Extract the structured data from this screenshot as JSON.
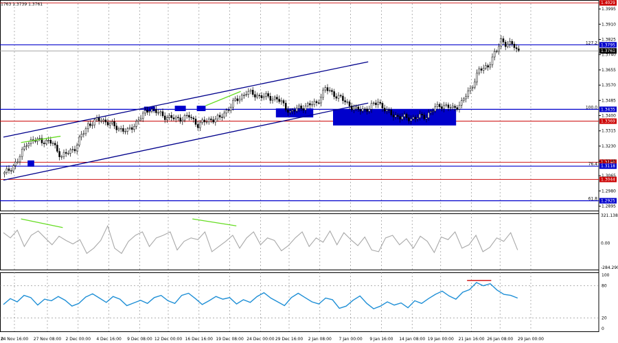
{
  "symbol_header": "1763 1.3739 1.3761",
  "colors": {
    "blue_level": "#0000cc",
    "red_level": "#cc0000",
    "candle": "#000000",
    "trend": "#00008b",
    "divergence": "#66dd22",
    "cci": "#a8a8a8",
    "rsi": "#1e8fd6",
    "grid": "#808080"
  },
  "chart_data": [
    {
      "type": "candlestick",
      "title": "",
      "yaxis_ticks": [
        "1.3995",
        "1.3910",
        "1.3825",
        "1.3740",
        "1.3655",
        "1.3570",
        "1.3485",
        "1.3400",
        "1.3315",
        "1.3230",
        "1.3145",
        "1.3065",
        "1.2980",
        "1.2895"
      ],
      "ylim": [
        1.287,
        1.4045
      ],
      "xlim_bars": [
        0,
        232
      ],
      "x_ticks": [
        {
          "label": "0",
          "bar": -1
        },
        {
          "label": "24 Nov 16:00",
          "bar": 5
        },
        {
          "label": "27 Nov 08:00",
          "bar": 20
        },
        {
          "label": "2 Dec 00:00",
          "bar": 34
        },
        {
          "label": "4 Dec 16:00",
          "bar": 48
        },
        {
          "label": "9 Dec 08:00",
          "bar": 62
        },
        {
          "label": "12 Dec 00:00",
          "bar": 75
        },
        {
          "label": "16 Dec 16:00",
          "bar": 89
        },
        {
          "label": "19 Dec 08:00",
          "bar": 103
        },
        {
          "label": "24 Dec 00:00",
          "bar": 117
        },
        {
          "label": "29 Dec 16:00",
          "bar": 130
        },
        {
          "label": "2 Jan 08:00",
          "bar": 144
        },
        {
          "label": "7 Jan 00:00",
          "bar": 158
        },
        {
          "label": "9 Jan 16:00",
          "bar": 172
        },
        {
          "label": "14 Jan 08:00",
          "bar": 186
        },
        {
          "label": "19 Jan 00:00",
          "bar": 199
        },
        {
          "label": "21 Jan 16:00",
          "bar": 213
        },
        {
          "label": "26 Jan 08:00",
          "bar": 226
        },
        {
          "label": "29 Jan 00:00",
          "bar": 240
        }
      ],
      "close_anchors": [
        [
          0,
          1.3075
        ],
        [
          6,
          1.3145
        ],
        [
          10,
          1.325
        ],
        [
          16,
          1.3265
        ],
        [
          22,
          1.3245
        ],
        [
          26,
          1.317
        ],
        [
          32,
          1.322
        ],
        [
          38,
          1.335
        ],
        [
          44,
          1.338
        ],
        [
          50,
          1.334
        ],
        [
          56,
          1.331
        ],
        [
          62,
          1.339
        ],
        [
          66,
          1.344
        ],
        [
          72,
          1.34
        ],
        [
          78,
          1.338
        ],
        [
          84,
          1.3395
        ],
        [
          88,
          1.335
        ],
        [
          94,
          1.338
        ],
        [
          98,
          1.3385
        ],
        [
          104,
          1.347
        ],
        [
          110,
          1.353
        ],
        [
          116,
          1.351
        ],
        [
          124,
          1.3495
        ],
        [
          130,
          1.342
        ],
        [
          136,
          1.345
        ],
        [
          142,
          1.347
        ],
        [
          146,
          1.355
        ],
        [
          150,
          1.352
        ],
        [
          156,
          1.347
        ],
        [
          160,
          1.343
        ],
        [
          166,
          1.344
        ],
        [
          170,
          1.348
        ],
        [
          174,
          1.342
        ],
        [
          180,
          1.339
        ],
        [
          186,
          1.3385
        ],
        [
          192,
          1.34
        ],
        [
          198,
          1.346
        ],
        [
          204,
          1.344
        ],
        [
          208,
          1.347
        ],
        [
          212,
          1.355
        ],
        [
          216,
          1.365
        ],
        [
          220,
          1.368
        ],
        [
          224,
          1.376
        ],
        [
          226,
          1.3825
        ],
        [
          228,
          1.38
        ],
        [
          232,
          1.379
        ],
        [
          234,
          1.3761
        ]
      ],
      "levels": [
        {
          "label": "1.4029",
          "value": 1.4029,
          "color": "red"
        },
        {
          "label": "1.3795",
          "value": 1.3795,
          "color": "blue",
          "fib": "127.2"
        },
        {
          "label": "1.3761",
          "value": 1.3761,
          "color": "gray",
          "current": true
        },
        {
          "label": "1.3435",
          "value": 1.3435,
          "color": "blue",
          "fib": "100.0"
        },
        {
          "label": "1.3369",
          "value": 1.3369,
          "color": "red"
        },
        {
          "label": "1.3140",
          "value": 1.314,
          "color": "red"
        },
        {
          "label": "1.3118",
          "value": 1.3118,
          "color": "blue",
          "fib": "76.4"
        },
        {
          "label": "1.3044",
          "value": 1.3044,
          "color": "red"
        },
        {
          "label": "1.2925",
          "value": 1.2925,
          "color": "blue",
          "fib": "61.8"
        }
      ],
      "channel": {
        "upper": [
          [
            0,
            1.328
          ],
          [
            166,
            1.37
          ]
        ],
        "lower": [
          [
            0,
            1.304
          ],
          [
            166,
            1.347
          ]
        ]
      },
      "zones": [
        {
          "from_bar": 11,
          "to_bar": 14,
          "low": 1.3115,
          "high": 1.315
        },
        {
          "from_bar": 64,
          "to_bar": 69,
          "low": 1.3425,
          "high": 1.345
        },
        {
          "from_bar": 78,
          "to_bar": 83,
          "low": 1.3425,
          "high": 1.3455
        },
        {
          "from_bar": 88,
          "to_bar": 92,
          "low": 1.3425,
          "high": 1.3455
        },
        {
          "from_bar": 124,
          "to_bar": 141,
          "low": 1.339,
          "high": 1.344
        },
        {
          "from_bar": 150,
          "to_bar": 206,
          "low": 1.3345,
          "high": 1.3435
        }
      ],
      "divergence_lines": [
        {
          "from": [
            8,
            1.325
          ],
          "to": [
            26,
            1.3285
          ]
        },
        {
          "from": [
            92,
            1.3455
          ],
          "to": [
            108,
            1.3535
          ]
        }
      ]
    },
    {
      "type": "line",
      "title": "",
      "tick_labels": [
        "321.1386",
        "0.00",
        "-284.290"
      ],
      "ylim": [
        -284.29,
        321.1386
      ],
      "series": [
        {
          "values": [
            120,
            60,
            150,
            -40,
            90,
            140,
            60,
            -20,
            80,
            30,
            -10,
            40,
            -120,
            -60,
            30,
            200,
            -60,
            -120,
            20,
            90,
            130,
            -40,
            60,
            90,
            130,
            -80,
            20,
            60,
            40,
            130,
            -100,
            -40,
            20,
            90,
            -60,
            60,
            130,
            -20,
            60,
            30,
            -90,
            -30,
            60,
            130,
            -40,
            60,
            10,
            140,
            -20,
            120,
            40,
            -30,
            70,
            -80,
            -100,
            60,
            90,
            -20,
            50,
            -60,
            80,
            20,
            -110,
            70,
            40,
            130,
            -60,
            -20,
            90,
            -100,
            -50,
            60,
            20,
            120,
            -80
          ]
        }
      ],
      "divergence": [
        {
          "from": [
            8,
            280
          ],
          "to": [
            27,
            180
          ]
        },
        {
          "from": [
            86,
            280
          ],
          "to": [
            106,
            200
          ]
        }
      ]
    },
    {
      "type": "line",
      "title": "",
      "tick_labels": [
        "100",
        "80",
        "20",
        "0"
      ],
      "ylim": [
        0,
        100
      ],
      "series": [
        {
          "values": [
            45,
            56,
            50,
            62,
            58,
            44,
            55,
            52,
            60,
            53,
            42,
            47,
            59,
            65,
            57,
            49,
            60,
            55,
            43,
            48,
            53,
            47,
            58,
            62,
            52,
            47,
            62,
            66,
            56,
            45,
            52,
            60,
            55,
            58,
            46,
            54,
            49,
            60,
            67,
            57,
            50,
            43,
            58,
            66,
            58,
            50,
            46,
            57,
            54,
            38,
            42,
            53,
            61,
            47,
            37,
            42,
            50,
            44,
            48,
            39,
            52,
            47,
            56,
            64,
            70,
            61,
            55,
            68,
            73,
            86,
            80,
            84,
            72,
            64,
            62,
            57
          ]
        }
      ],
      "resistance_line": {
        "from_bar": 211,
        "to_bar": 222,
        "value": 90
      }
    }
  ]
}
